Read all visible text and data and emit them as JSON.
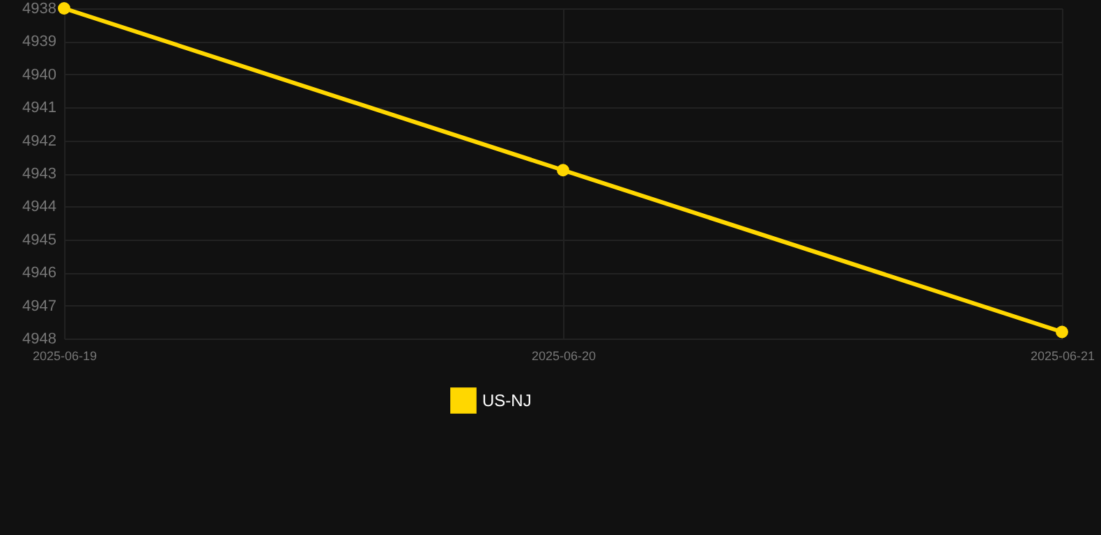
{
  "chart_data": {
    "type": "line",
    "categories": [
      "2025-06-19",
      "2025-06-20",
      "2025-06-21"
    ],
    "series": [
      {
        "name": "US-NJ",
        "color": "#ffd700",
        "values": [
          4938,
          4942.9,
          4947.8
        ]
      }
    ],
    "ylim": [
      4948,
      4938
    ],
    "yticks": [
      4938,
      4939,
      4940,
      4941,
      4942,
      4943,
      4944,
      4945,
      4946,
      4947,
      4948
    ],
    "grid": true,
    "legend": "bottom",
    "marker": "circle"
  }
}
